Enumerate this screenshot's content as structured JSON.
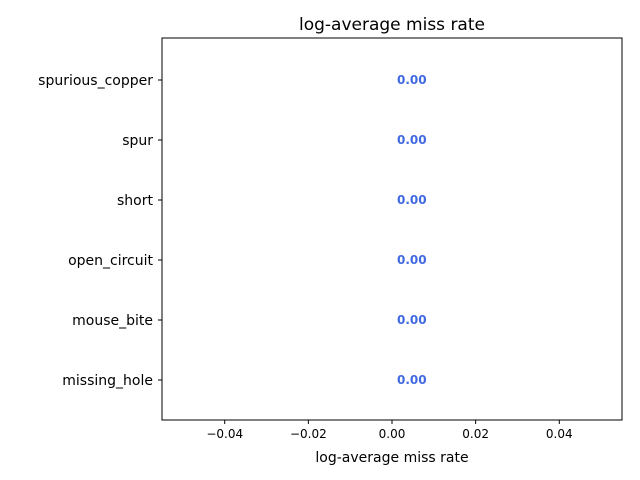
{
  "chart_data": {
    "type": "bar",
    "orientation": "horizontal",
    "title": "log-average miss rate",
    "xlabel": "log-average miss rate",
    "ylabel": "",
    "categories": [
      "missing_hole",
      "mouse_bite",
      "open_circuit",
      "short",
      "spur",
      "spurious_copper"
    ],
    "values": [
      0.0,
      0.0,
      0.0,
      0.0,
      0.0,
      0.0
    ],
    "data_labels": [
      "0.00",
      "0.00",
      "0.00",
      "0.00",
      "0.00",
      "0.00"
    ],
    "xlim": [
      -0.055,
      0.055
    ],
    "xticks": [
      -0.04,
      -0.02,
      0.0,
      0.02,
      0.04
    ],
    "xtick_labels": [
      "−0.04",
      "−0.02",
      "0.00",
      "0.02",
      "0.04"
    ],
    "grid": false,
    "bar_color": "#4169e1",
    "label_color": "#4169e1"
  }
}
